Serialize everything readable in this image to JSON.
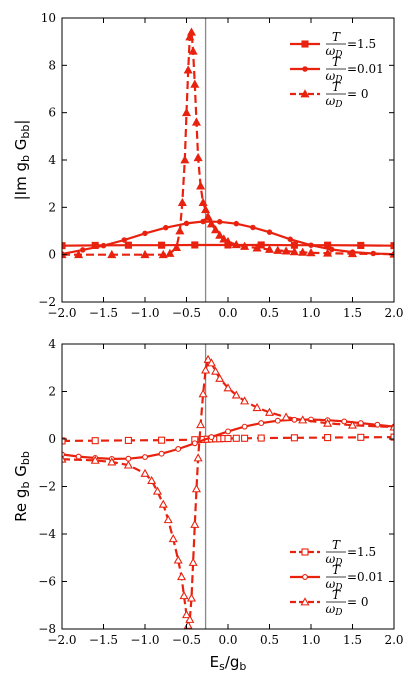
{
  "colors": {
    "series": "#e8220f",
    "vline": "#8a8a8a",
    "axes": "#000000"
  },
  "chart_data": [
    {
      "type": "line",
      "ylabel": "|Im g_b G_bb|",
      "ylabel_parts": [
        "|Im g",
        "b",
        " G",
        "bb",
        "|"
      ],
      "xlabel": "",
      "xlim": [
        -2.0,
        2.0
      ],
      "ylim": [
        -2,
        10
      ],
      "xticks": [
        "−2.0",
        "−1.5",
        "−1.0",
        "−0.5",
        "0.0",
        "0.5",
        "1.0",
        "1.5",
        "2.0"
      ],
      "yticks": [
        "−2",
        "0",
        "2",
        "4",
        "6",
        "8",
        "10"
      ],
      "vline_x": -0.27,
      "legend_position": "top-right",
      "legend": [
        {
          "num": "T",
          "den": "ω",
          "den_sub": "D",
          "suffix": "=1.5"
        },
        {
          "num": "T",
          "den": "ω",
          "den_sub": "D",
          "suffix": "=0.01"
        },
        {
          "num": "T",
          "den": "ω",
          "den_sub": "D",
          "suffix": "= 0"
        }
      ],
      "series": [
        {
          "style": "square-filled",
          "x": [
            -2.0,
            -1.6,
            -1.2,
            -0.8,
            -0.4,
            0.0,
            0.4,
            0.8,
            1.2,
            1.6,
            2.0
          ],
          "y": [
            0.38,
            0.39,
            0.4,
            0.4,
            0.41,
            0.41,
            0.41,
            0.4,
            0.4,
            0.39,
            0.38
          ]
        },
        {
          "style": "circle-filled",
          "x": [
            -2.0,
            -1.75,
            -1.5,
            -1.25,
            -1.0,
            -0.75,
            -0.5,
            -0.3,
            -0.1,
            0.1,
            0.3,
            0.5,
            0.75,
            1.0,
            1.25,
            1.5,
            1.75,
            2.0
          ],
          "y": [
            0.03,
            0.2,
            0.38,
            0.62,
            0.9,
            1.14,
            1.32,
            1.4,
            1.39,
            1.31,
            1.15,
            0.95,
            0.65,
            0.4,
            0.22,
            0.11,
            0.05,
            0.02
          ]
        },
        {
          "style": "triangle-filled",
          "x": [
            -2.0,
            -1.8,
            -1.4,
            -1.0,
            -0.78,
            -0.7,
            -0.62,
            -0.58,
            -0.55,
            -0.52,
            -0.5,
            -0.48,
            -0.46,
            -0.44,
            -0.42,
            -0.4,
            -0.38,
            -0.36,
            -0.33,
            -0.3,
            -0.27,
            -0.24,
            -0.2,
            -0.15,
            -0.1,
            -0.05,
            0.0,
            0.1,
            0.2,
            0.35,
            0.5,
            0.6,
            0.7,
            0.8,
            0.9,
            1.0,
            1.2,
            1.5,
            2.0
          ],
          "y": [
            0.0,
            0.0,
            0.0,
            0.0,
            0.0,
            0.05,
            0.3,
            1.0,
            2.2,
            4.0,
            6.0,
            7.8,
            9.2,
            9.4,
            8.6,
            7.2,
            5.6,
            4.1,
            2.9,
            2.2,
            1.9,
            1.6,
            1.3,
            1.05,
            0.82,
            0.66,
            0.55,
            0.42,
            0.35,
            0.28,
            0.22,
            0.18,
            0.15,
            0.12,
            0.1,
            0.08,
            0.06,
            0.04,
            0.02
          ]
        }
      ]
    },
    {
      "type": "line",
      "ylabel": "Re g_b G_bb",
      "ylabel_parts": [
        "Re g",
        "b",
        " G",
        "bb",
        ""
      ],
      "xlabel": "E_s/g_b",
      "xlabel_parts": [
        "E",
        "s",
        "/g",
        "b"
      ],
      "xlim": [
        -2.0,
        2.0
      ],
      "ylim": [
        -8,
        4
      ],
      "xticks": [
        "−2.0",
        "−1.5",
        "−1.0",
        "−0.5",
        "0.0",
        "0.5",
        "1.0",
        "1.5",
        "2.0"
      ],
      "yticks": [
        "−8",
        "−6",
        "−4",
        "−2",
        "0",
        "2",
        "4"
      ],
      "vline_x": -0.27,
      "legend_position": "bottom-right",
      "legend": [
        {
          "num": "T",
          "den": "ω",
          "den_sub": "D",
          "suffix": "=1.5"
        },
        {
          "num": "T",
          "den": "ω",
          "den_sub": "D",
          "suffix": "=0.01"
        },
        {
          "num": "T",
          "den": "ω",
          "den_sub": "D",
          "suffix": "= 0"
        }
      ],
      "series": [
        {
          "style": "square-open",
          "x": [
            -2.0,
            -1.6,
            -1.2,
            -0.8,
            -0.4,
            -0.3,
            -0.25,
            -0.2,
            -0.15,
            -0.1,
            -0.05,
            0.0,
            0.1,
            0.2,
            0.4,
            0.8,
            1.2,
            1.6,
            2.0
          ],
          "y": [
            -0.08,
            -0.07,
            -0.06,
            -0.05,
            -0.03,
            -0.02,
            -0.01,
            0.0,
            0.01,
            0.01,
            0.02,
            0.02,
            0.03,
            0.03,
            0.04,
            0.05,
            0.06,
            0.07,
            0.08
          ]
        },
        {
          "style": "circle-open",
          "x": [
            -2.0,
            -1.8,
            -1.6,
            -1.4,
            -1.2,
            -1.0,
            -0.8,
            -0.6,
            -0.4,
            -0.2,
            0.0,
            0.2,
            0.4,
            0.6,
            0.8,
            1.0,
            1.2,
            1.4,
            1.6,
            1.8,
            2.0
          ],
          "y": [
            -0.65,
            -0.74,
            -0.8,
            -0.84,
            -0.83,
            -0.76,
            -0.62,
            -0.42,
            -0.18,
            0.08,
            0.32,
            0.52,
            0.67,
            0.77,
            0.81,
            0.82,
            0.79,
            0.74,
            0.67,
            0.6,
            0.52
          ]
        },
        {
          "style": "triangle-open",
          "x": [
            -2.0,
            -1.6,
            -1.4,
            -1.2,
            -1.0,
            -0.92,
            -0.85,
            -0.78,
            -0.72,
            -0.66,
            -0.6,
            -0.56,
            -0.53,
            -0.5,
            -0.48,
            -0.46,
            -0.44,
            -0.42,
            -0.4,
            -0.38,
            -0.36,
            -0.33,
            -0.3,
            -0.27,
            -0.24,
            -0.2,
            -0.15,
            -0.1,
            0.0,
            0.1,
            0.2,
            0.35,
            0.5,
            0.7,
            0.9,
            1.2,
            1.5,
            2.0
          ],
          "y": [
            -0.85,
            -0.9,
            -0.97,
            -1.1,
            -1.45,
            -1.75,
            -2.2,
            -2.75,
            -3.4,
            -4.2,
            -5.1,
            -5.8,
            -6.6,
            -7.4,
            -7.85,
            -7.6,
            -6.7,
            -5.2,
            -3.6,
            -2.1,
            -0.8,
            0.6,
            1.9,
            2.9,
            3.35,
            3.2,
            2.85,
            2.55,
            2.15,
            1.85,
            1.6,
            1.32,
            1.12,
            0.92,
            0.8,
            0.66,
            0.58,
            0.5
          ]
        }
      ]
    }
  ]
}
